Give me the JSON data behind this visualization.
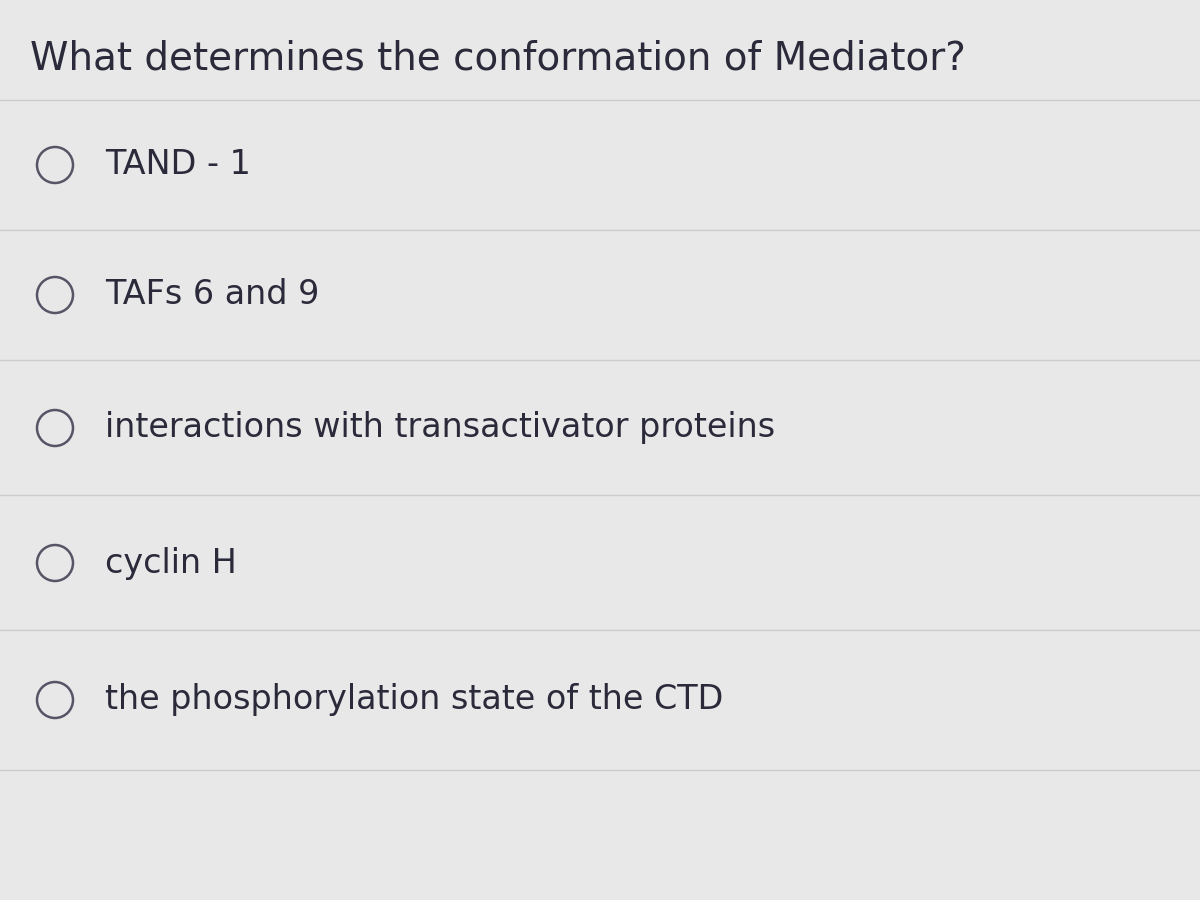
{
  "title": "What determines the conformation of Mediator?",
  "options": [
    "TAND - 1",
    "TAFs 6 and 9",
    "interactions with transactivator proteins",
    "cyclin H",
    "the phosphorylation state of the CTD"
  ],
  "background_color": "#e8e8e8",
  "title_color": "#2a2a3a",
  "option_color": "#2a2a3a",
  "circle_edgecolor": "#555566",
  "line_color": "#cccccc",
  "title_fontsize": 28,
  "option_fontsize": 24,
  "figsize": [
    12,
    9
  ]
}
